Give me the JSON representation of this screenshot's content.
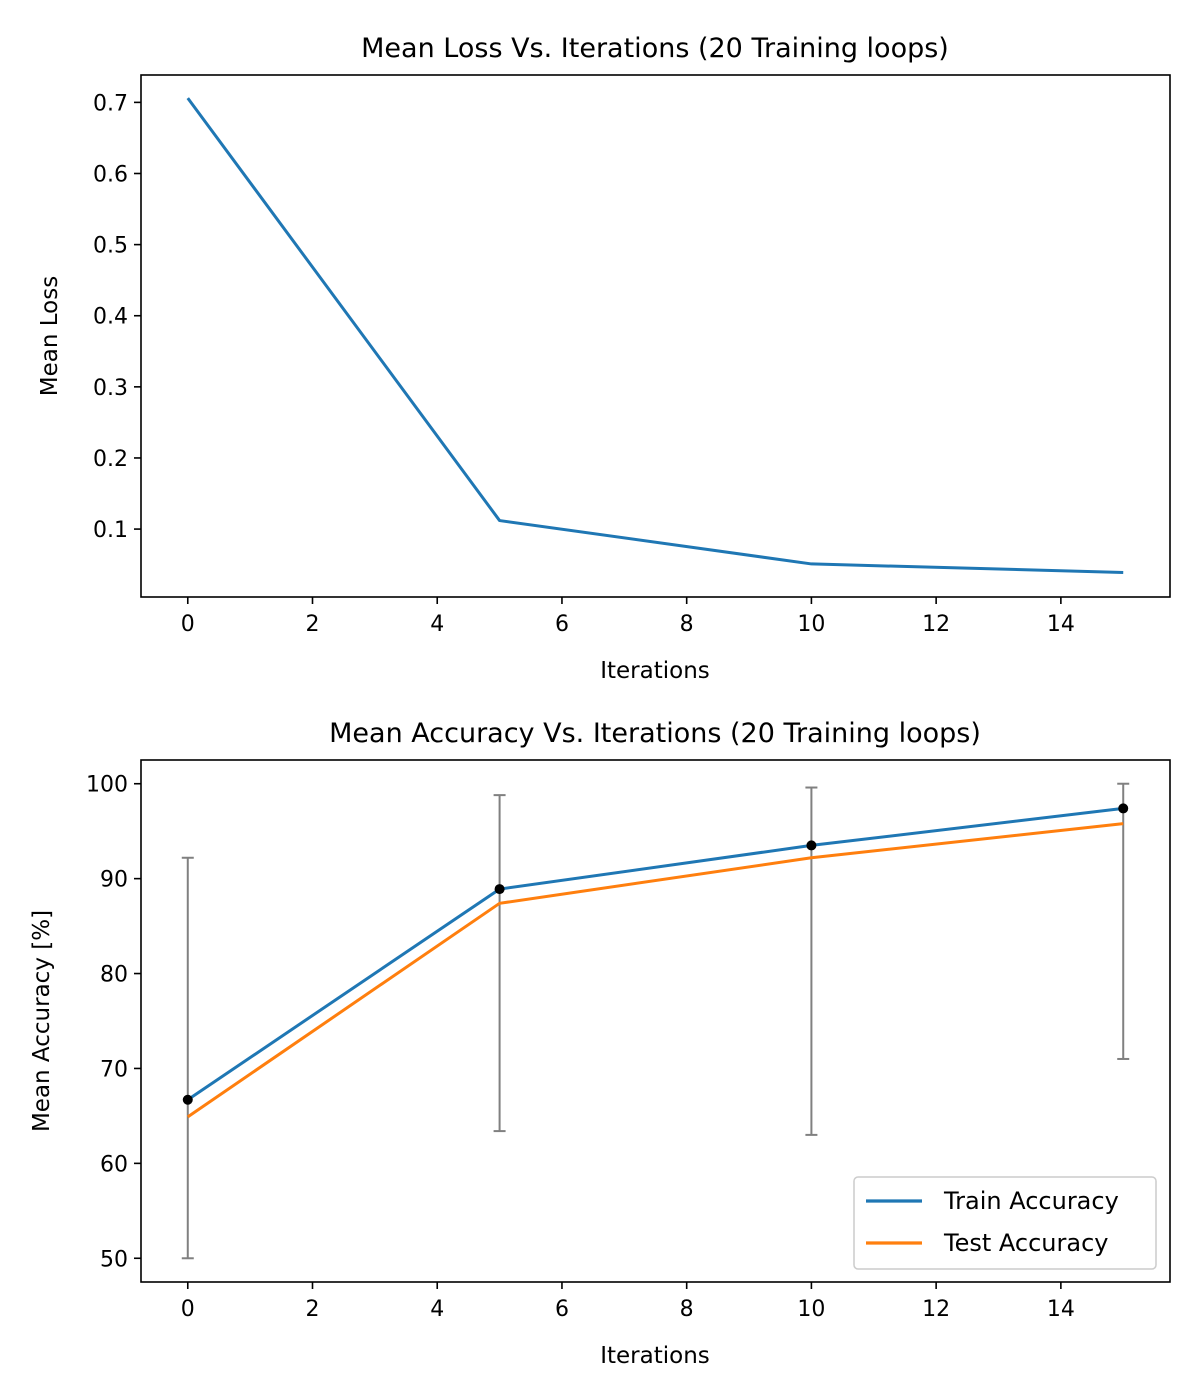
{
  "chart_data": [
    {
      "type": "line",
      "title": "Mean Loss Vs. Iterations (20 Training loops)",
      "xlabel": "Iterations",
      "ylabel": "Mean Loss",
      "xlim": [
        -0.75,
        15.75
      ],
      "ylim": [
        0.0045,
        0.7385
      ],
      "xticks": [
        0,
        2,
        4,
        6,
        8,
        10,
        12,
        14
      ],
      "yticks": [
        0.1,
        0.2,
        0.3,
        0.4,
        0.5,
        0.6,
        0.7
      ],
      "grid": false,
      "series": [
        {
          "color": "#1f77b4",
          "x": [
            0,
            5,
            10,
            15
          ],
          "y": [
            0.706,
            0.112,
            0.051,
            0.039
          ]
        }
      ]
    },
    {
      "type": "line",
      "title": "Mean Accuracy Vs. Iterations (20 Training loops)",
      "xlabel": "Iterations",
      "ylabel": "Mean Accuracy [%]",
      "xlim": [
        -0.75,
        15.75
      ],
      "ylim": [
        47.5,
        102.5
      ],
      "xticks": [
        0,
        2,
        4,
        6,
        8,
        10,
        12,
        14
      ],
      "yticks": [
        50,
        60,
        70,
        80,
        90,
        100
      ],
      "grid": false,
      "legend_position": "lower-right",
      "series": [
        {
          "name": "Train Accuracy",
          "color": "#1f77b4",
          "x": [
            0,
            5,
            10,
            15
          ],
          "y": [
            66.7,
            88.9,
            93.5,
            97.4
          ]
        },
        {
          "name": "Test Accuracy",
          "color": "#ff7f0e",
          "x": [
            0,
            5,
            10,
            15
          ],
          "y": [
            64.9,
            87.4,
            92.2,
            95.8
          ]
        }
      ],
      "error_bars": {
        "color": "#808080",
        "x": [
          0,
          5,
          10,
          15
        ],
        "low": [
          50.0,
          63.4,
          63.0,
          71.0
        ],
        "high": [
          92.2,
          98.8,
          99.6,
          100.0
        ]
      },
      "markers": {
        "color": "#000000",
        "x": [
          0,
          5,
          10,
          15
        ],
        "y": [
          66.7,
          88.9,
          93.5,
          97.4
        ]
      }
    }
  ]
}
